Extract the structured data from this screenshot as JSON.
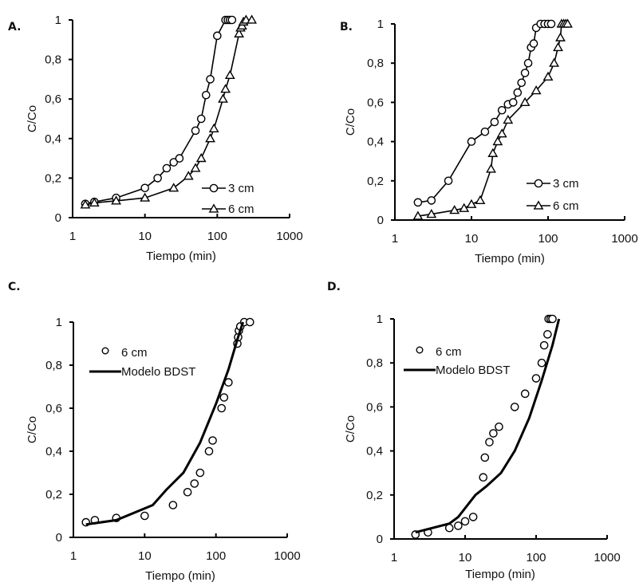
{
  "chart_data": [
    {
      "id": "A",
      "type": "line",
      "panel_label": "A.",
      "xlabel": "Tiempo (min)",
      "ylabel": "C/Co",
      "xscale": "log",
      "xlim": [
        1,
        1000
      ],
      "ylim": [
        0,
        1
      ],
      "xticks": [
        1,
        10,
        100,
        1000
      ],
      "xtick_labels": [
        "1",
        "10",
        "100",
        "1000"
      ],
      "yticks": [
        0,
        0.2,
        0.4,
        0.6,
        0.8,
        1
      ],
      "ytick_labels": [
        "0",
        "0,2",
        "0,4",
        "0,6",
        "0,8",
        "1"
      ],
      "grid": false,
      "legend_position": "bottom-right",
      "series": [
        {
          "name": "3 cm",
          "marker": "circle",
          "line": "thin",
          "x": [
            1.5,
            2,
            4,
            10,
            15,
            20,
            25,
            30,
            50,
            60,
            70,
            80,
            100,
            130,
            140,
            150,
            160
          ],
          "y": [
            0.07,
            0.08,
            0.1,
            0.15,
            0.2,
            0.25,
            0.28,
            0.3,
            0.44,
            0.5,
            0.62,
            0.7,
            0.92,
            1.0,
            1.0,
            1.0,
            1.0
          ]
        },
        {
          "name": "6 cm",
          "marker": "triangle",
          "line": "thin",
          "x": [
            1.5,
            2,
            4,
            10,
            25,
            40,
            50,
            60,
            80,
            90,
            120,
            130,
            150,
            200,
            210,
            220,
            230,
            250,
            300
          ],
          "y": [
            0.065,
            0.075,
            0.085,
            0.1,
            0.15,
            0.21,
            0.25,
            0.3,
            0.4,
            0.45,
            0.6,
            0.65,
            0.72,
            0.93,
            0.96,
            0.97,
            0.99,
            1.0,
            1.0
          ]
        }
      ]
    },
    {
      "id": "B",
      "type": "line",
      "panel_label": "B.",
      "xlabel": "Tiempo (min)",
      "ylabel": "C/Co",
      "xscale": "log",
      "xlim": [
        1,
        1000
      ],
      "ylim": [
        0,
        1
      ],
      "xticks": [
        1,
        10,
        100,
        1000
      ],
      "xtick_labels": [
        "1",
        "10",
        "100",
        "1000"
      ],
      "yticks": [
        0,
        0.2,
        0.4,
        0.6,
        0.8,
        1
      ],
      "ytick_labels": [
        "0",
        "0,2",
        "0,4",
        "0,6",
        "0,8",
        "1"
      ],
      "grid": false,
      "legend_position": "bottom-right",
      "series": [
        {
          "name": "3 cm",
          "marker": "circle",
          "line": "thin",
          "x": [
            2,
            3,
            5,
            10,
            15,
            20,
            25,
            30,
            35,
            40,
            45,
            50,
            55,
            60,
            65,
            70,
            80,
            90,
            100,
            110
          ],
          "y": [
            0.09,
            0.1,
            0.2,
            0.4,
            0.45,
            0.5,
            0.56,
            0.59,
            0.6,
            0.65,
            0.7,
            0.75,
            0.8,
            0.88,
            0.9,
            0.98,
            1.0,
            1.0,
            1.0,
            1.0
          ]
        },
        {
          "name": "6 cm",
          "marker": "triangle",
          "line": "thin",
          "x": [
            2,
            3,
            6,
            8,
            10,
            13,
            18,
            19,
            22,
            25,
            30,
            50,
            70,
            100,
            120,
            135,
            145,
            150,
            160,
            170,
            180
          ],
          "y": [
            0.02,
            0.03,
            0.05,
            0.06,
            0.08,
            0.1,
            0.26,
            0.34,
            0.4,
            0.44,
            0.51,
            0.6,
            0.66,
            0.73,
            0.8,
            0.88,
            0.93,
            1.0,
            1.0,
            1.0,
            1.0
          ]
        }
      ]
    },
    {
      "id": "C",
      "type": "scatter",
      "panel_label": "C.",
      "xlabel": "Tiempo (min)",
      "ylabel": "C/Co",
      "xscale": "log",
      "xlim": [
        1,
        1000
      ],
      "ylim": [
        0,
        1
      ],
      "xticks": [
        1,
        10,
        100,
        1000
      ],
      "xtick_labels": [
        "1",
        "10",
        "100",
        "1000"
      ],
      "yticks": [
        0,
        0.2,
        0.4,
        0.6,
        0.8,
        1
      ],
      "ytick_labels": [
        "0",
        "0,2",
        "0,4",
        "0,6",
        "0,8",
        "1"
      ],
      "grid": false,
      "legend_position": "top-left",
      "series": [
        {
          "name": "6 cm",
          "marker": "circle",
          "line": "none",
          "x": [
            1.5,
            2,
            4,
            10,
            25,
            40,
            50,
            60,
            80,
            90,
            120,
            130,
            150,
            200,
            205,
            210,
            220,
            250,
            300
          ],
          "y": [
            0.07,
            0.08,
            0.09,
            0.1,
            0.15,
            0.21,
            0.25,
            0.3,
            0.4,
            0.45,
            0.6,
            0.65,
            0.72,
            0.9,
            0.93,
            0.96,
            0.98,
            1.0,
            1.0
          ]
        },
        {
          "name": "Modelo BDST",
          "marker": "none",
          "line": "thick",
          "x": [
            1.5,
            4,
            13,
            20,
            35,
            60,
            100,
            150,
            200,
            240
          ],
          "y": [
            0.06,
            0.08,
            0.15,
            0.22,
            0.3,
            0.44,
            0.62,
            0.78,
            0.92,
            1.0
          ]
        }
      ]
    },
    {
      "id": "D",
      "type": "scatter",
      "panel_label": "D.",
      "xlabel": "Tiempo (min)",
      "ylabel": "C/Co",
      "xscale": "log",
      "xlim": [
        1,
        1000
      ],
      "ylim": [
        0,
        1
      ],
      "xticks": [
        1,
        10,
        100,
        1000
      ],
      "xtick_labels": [
        "1",
        "10",
        "100",
        "1000"
      ],
      "yticks": [
        0,
        0.2,
        0.4,
        0.6,
        0.8,
        1
      ],
      "ytick_labels": [
        "0",
        "0,2",
        "0,4",
        "0,6",
        "0,8",
        "1"
      ],
      "grid": false,
      "legend_position": "top-left",
      "series": [
        {
          "name": "6 cm",
          "marker": "circle",
          "line": "none",
          "x": [
            2,
            3,
            6,
            8,
            10,
            13,
            18,
            19,
            22,
            25,
            30,
            50,
            70,
            100,
            120,
            130,
            145,
            150,
            160,
            170
          ],
          "y": [
            0.02,
            0.03,
            0.05,
            0.06,
            0.08,
            0.1,
            0.28,
            0.37,
            0.44,
            0.48,
            0.51,
            0.6,
            0.66,
            0.73,
            0.8,
            0.88,
            0.93,
            1.0,
            1.0,
            1.0
          ]
        },
        {
          "name": "Modelo BDST",
          "marker": "none",
          "line": "thick",
          "x": [
            2,
            6,
            8,
            10,
            14,
            20,
            32,
            50,
            80,
            120,
            170,
            210
          ],
          "y": [
            0.03,
            0.07,
            0.1,
            0.14,
            0.2,
            0.24,
            0.3,
            0.4,
            0.55,
            0.72,
            0.88,
            1.0
          ]
        }
      ]
    }
  ]
}
